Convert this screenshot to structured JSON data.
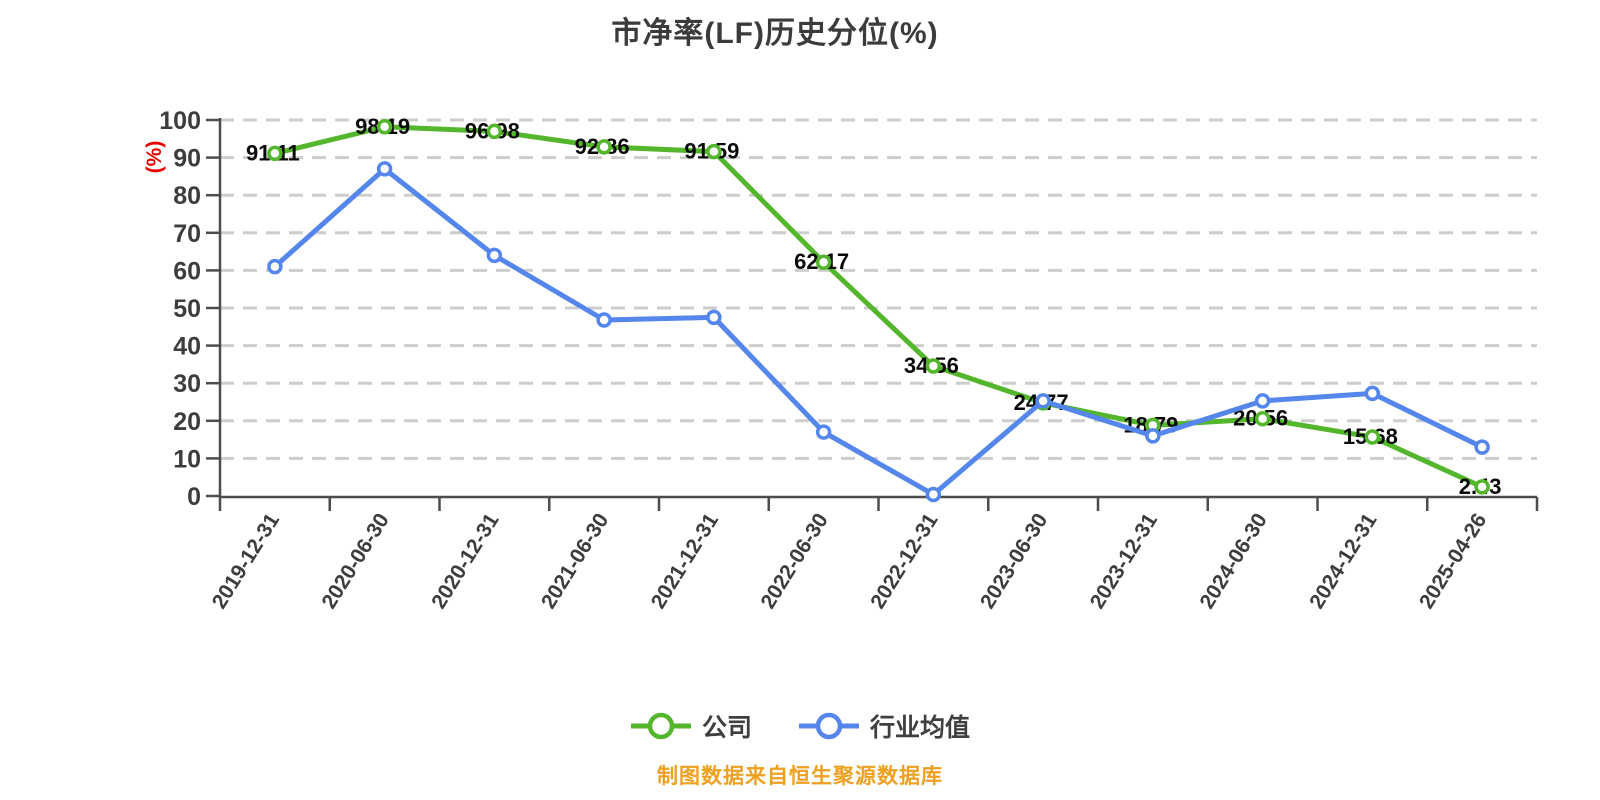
{
  "title": "市净率(LF)历史分位(%)",
  "source_note": "制图数据来自恒生聚源数据库",
  "colors": {
    "company_green": "#54b62c",
    "industry_blue": "#5486ec",
    "grid_gray": "#cdcdcd",
    "axis_gray": "#4d4d4d",
    "tick_label_gray": "#3d3d3d",
    "data_label_black": "#0a0a0a",
    "y_unit_red": "#e60000",
    "note_orange": "#efa021",
    "title_gray": "#3b3b3b"
  },
  "chart_data": {
    "type": "line",
    "title": "市净率(LF)历史分位(%)",
    "xlabel": "",
    "ylabel": "(%)",
    "ylim": [
      0,
      100
    ],
    "y_ticks": [
      0,
      10,
      20,
      30,
      40,
      50,
      60,
      70,
      80,
      90,
      100
    ],
    "grid": "horizontal-dashed",
    "legend_position": "bottom",
    "categories": [
      "2019-12-31",
      "2020-06-30",
      "2020-12-31",
      "2021-06-30",
      "2021-12-31",
      "2022-06-30",
      "2022-12-31",
      "2023-06-30",
      "2023-12-31",
      "2024-06-30",
      "2024-12-31",
      "2025-04-26"
    ],
    "series": [
      {
        "name": "公司",
        "color": "#54b62c",
        "show_labels": true,
        "values": [
          91.11,
          98.19,
          96.98,
          92.86,
          91.59,
          62.17,
          34.56,
          24.77,
          18.79,
          20.56,
          15.68,
          2.43
        ]
      },
      {
        "name": "行业均值",
        "color": "#5486ec",
        "show_labels": false,
        "values": [
          61,
          87,
          64,
          46.8,
          47.5,
          17,
          0.4,
          25.3,
          16,
          25.3,
          27.3,
          13
        ]
      }
    ]
  }
}
